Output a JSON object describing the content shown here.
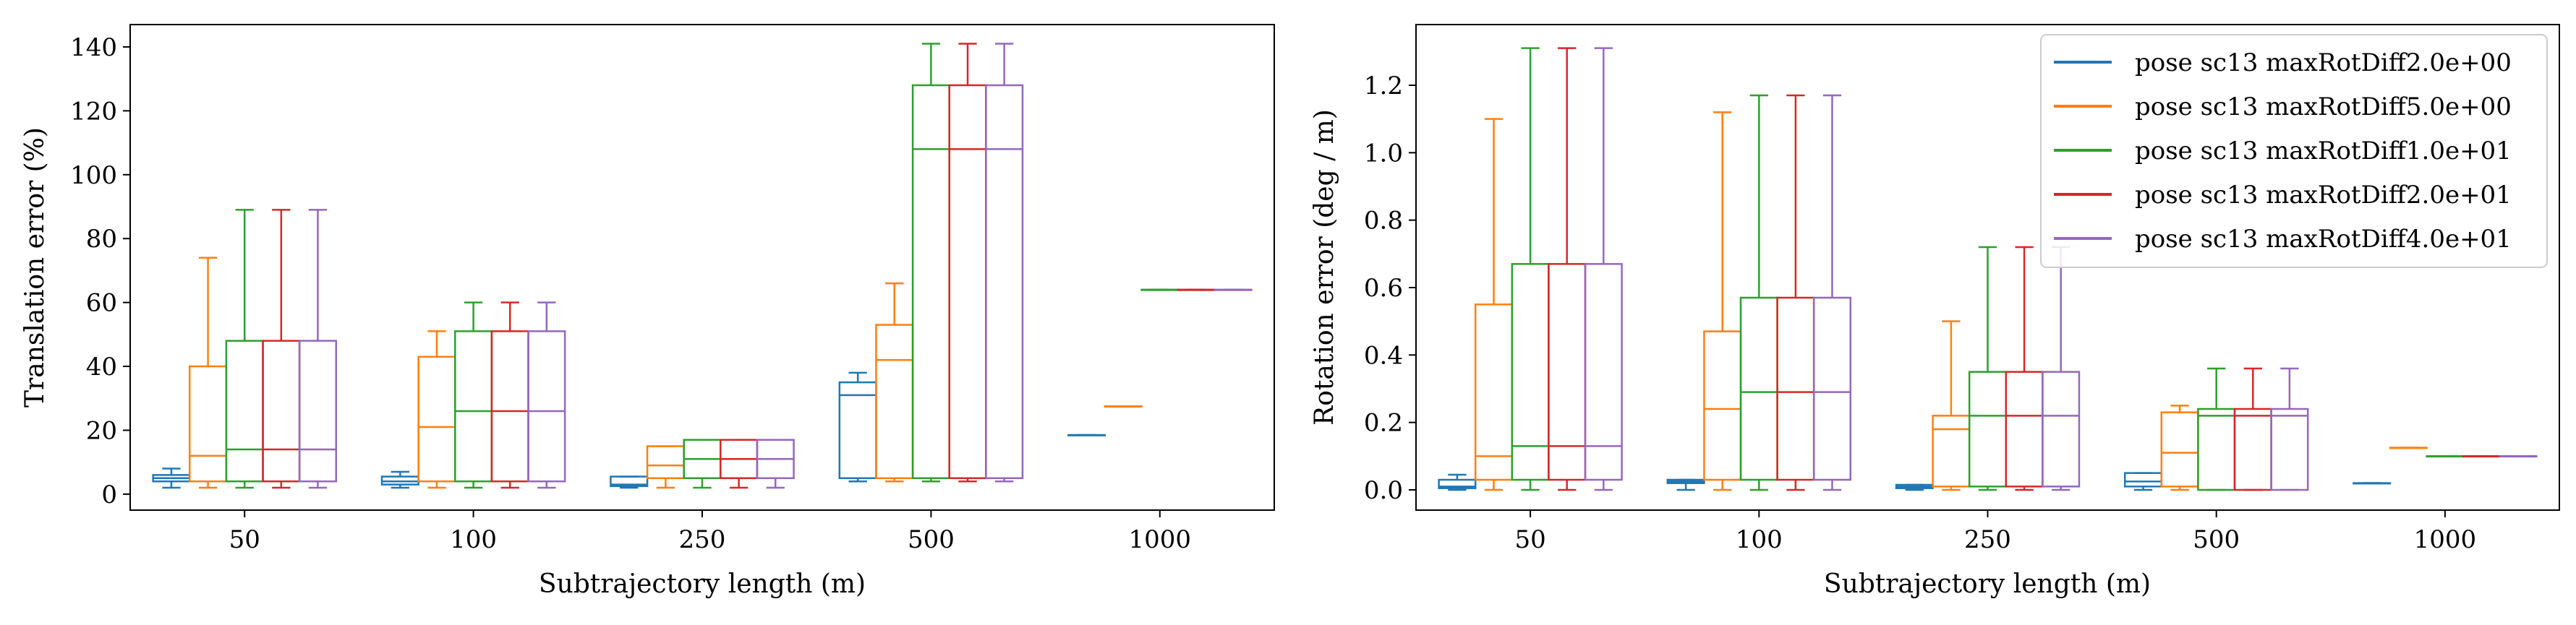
{
  "figure": {
    "background": "#ffffff"
  },
  "chart_data": [
    {
      "type": "box",
      "xlabel": "Subtrajectory length (m)",
      "ylabel": "Translation error (%)",
      "categories": [
        "50",
        "100",
        "250",
        "500",
        "1000"
      ],
      "ylim": [
        -5,
        147
      ],
      "yticks": [
        0,
        20,
        40,
        60,
        80,
        100,
        120,
        140
      ],
      "grid": false,
      "legend": null,
      "series": [
        {
          "name": "pose sc13 maxRotDiff2.0e+00",
          "color": "#1f77b4",
          "boxes": [
            {
              "whislo": 2,
              "q1": 4,
              "med": 5,
              "q3": 6,
              "whishi": 8
            },
            {
              "whislo": 2,
              "q1": 3,
              "med": 4,
              "q3": 5.5,
              "whishi": 7
            },
            {
              "whislo": 2,
              "q1": 2.5,
              "med": 3,
              "q3": 5.5,
              "whishi": 5.5
            },
            {
              "whislo": 4,
              "q1": 5,
              "med": 31,
              "q3": 35,
              "whishi": 38
            },
            {
              "whislo": 18.5,
              "q1": 18.5,
              "med": 18.5,
              "q3": 18.5,
              "whishi": 18.5
            }
          ]
        },
        {
          "name": "pose sc13 maxRotDiff5.0e+00",
          "color": "#ff7f0e",
          "boxes": [
            {
              "whislo": 2,
              "q1": 4,
              "med": 12,
              "q3": 40,
              "whishi": 74
            },
            {
              "whislo": 2,
              "q1": 4,
              "med": 21,
              "q3": 43,
              "whishi": 51
            },
            {
              "whislo": 2,
              "q1": 5,
              "med": 9,
              "q3": 15,
              "whishi": 15
            },
            {
              "whislo": 4,
              "q1": 5,
              "med": 42,
              "q3": 53,
              "whishi": 66
            },
            {
              "whislo": 27.5,
              "q1": 27.5,
              "med": 27.5,
              "q3": 27.5,
              "whishi": 27.5
            }
          ]
        },
        {
          "name": "pose sc13 maxRotDiff1.0e+01",
          "color": "#2ca02c",
          "boxes": [
            {
              "whislo": 2,
              "q1": 4,
              "med": 14,
              "q3": 48,
              "whishi": 89
            },
            {
              "whislo": 2,
              "q1": 4,
              "med": 26,
              "q3": 51,
              "whishi": 60
            },
            {
              "whislo": 2,
              "q1": 5,
              "med": 11,
              "q3": 17,
              "whishi": 17
            },
            {
              "whislo": 4,
              "q1": 5,
              "med": 108,
              "q3": 128,
              "whishi": 141
            },
            {
              "whislo": 64,
              "q1": 64,
              "med": 64,
              "q3": 64,
              "whishi": 64
            }
          ]
        },
        {
          "name": "pose sc13 maxRotDiff2.0e+01",
          "color": "#d62728",
          "boxes": [
            {
              "whislo": 2,
              "q1": 4,
              "med": 14,
              "q3": 48,
              "whishi": 89
            },
            {
              "whislo": 2,
              "q1": 4,
              "med": 26,
              "q3": 51,
              "whishi": 60
            },
            {
              "whislo": 2,
              "q1": 5,
              "med": 11,
              "q3": 17,
              "whishi": 17
            },
            {
              "whislo": 4,
              "q1": 5,
              "med": 108,
              "q3": 128,
              "whishi": 141
            },
            {
              "whislo": 64,
              "q1": 64,
              "med": 64,
              "q3": 64,
              "whishi": 64
            }
          ]
        },
        {
          "name": "pose sc13 maxRotDiff4.0e+01",
          "color": "#9467bd",
          "boxes": [
            {
              "whislo": 2,
              "q1": 4,
              "med": 14,
              "q3": 48,
              "whishi": 89
            },
            {
              "whislo": 2,
              "q1": 4,
              "med": 26,
              "q3": 51,
              "whishi": 60
            },
            {
              "whislo": 2,
              "q1": 5,
              "med": 11,
              "q3": 17,
              "whishi": 17
            },
            {
              "whislo": 4,
              "q1": 5,
              "med": 108,
              "q3": 128,
              "whishi": 141
            },
            {
              "whislo": 64,
              "q1": 64,
              "med": 64,
              "q3": 64,
              "whishi": 64
            }
          ]
        }
      ]
    },
    {
      "type": "box",
      "xlabel": "Subtrajectory length (m)",
      "ylabel": "Rotation error (deg / m)",
      "categories": [
        "50",
        "100",
        "250",
        "500",
        "1000"
      ],
      "ylim": [
        -0.06,
        1.38
      ],
      "yticks": [
        0.0,
        0.2,
        0.4,
        0.6,
        0.8,
        1.0,
        1.2
      ],
      "ytick_labels": [
        "0.0",
        "0.2",
        "0.4",
        "0.6",
        "0.8",
        "1.0",
        "1.2"
      ],
      "grid": false,
      "legend": "top-right",
      "series": [
        {
          "name": "pose sc13 maxRotDiff2.0e+00",
          "color": "#1f77b4",
          "boxes": [
            {
              "whislo": 0.0,
              "q1": 0.005,
              "med": 0.01,
              "q3": 0.03,
              "whishi": 0.045
            },
            {
              "whislo": 0.0,
              "q1": 0.02,
              "med": 0.025,
              "q3": 0.03,
              "whishi": 0.03
            },
            {
              "whislo": 0.0,
              "q1": 0.005,
              "med": 0.01,
              "q3": 0.015,
              "whishi": 0.015
            },
            {
              "whislo": 0.0,
              "q1": 0.01,
              "med": 0.025,
              "q3": 0.05,
              "whishi": 0.05
            },
            {
              "whislo": 0.02,
              "q1": 0.02,
              "med": 0.02,
              "q3": 0.02,
              "whishi": 0.02
            }
          ]
        },
        {
          "name": "pose sc13 maxRotDiff5.0e+00",
          "color": "#ff7f0e",
          "boxes": [
            {
              "whislo": 0.0,
              "q1": 0.03,
              "med": 0.1,
              "q3": 0.55,
              "whishi": 1.1
            },
            {
              "whislo": 0.0,
              "q1": 0.03,
              "med": 0.24,
              "q3": 0.47,
              "whishi": 1.12
            },
            {
              "whislo": 0.0,
              "q1": 0.01,
              "med": 0.18,
              "q3": 0.22,
              "whishi": 0.5
            },
            {
              "whislo": 0.0,
              "q1": 0.01,
              "med": 0.11,
              "q3": 0.23,
              "whishi": 0.25
            },
            {
              "whislo": 0.125,
              "q1": 0.125,
              "med": 0.125,
              "q3": 0.125,
              "whishi": 0.125
            }
          ]
        },
        {
          "name": "pose sc13 maxRotDiff1.0e+01",
          "color": "#2ca02c",
          "boxes": [
            {
              "whislo": 0.0,
              "q1": 0.03,
              "med": 0.13,
              "q3": 0.67,
              "whishi": 1.31
            },
            {
              "whislo": 0.0,
              "q1": 0.03,
              "med": 0.29,
              "q3": 0.57,
              "whishi": 1.17
            },
            {
              "whislo": 0.0,
              "q1": 0.01,
              "med": 0.22,
              "q3": 0.35,
              "whishi": 0.72
            },
            {
              "whislo": 0.0,
              "q1": 0.0,
              "med": 0.22,
              "q3": 0.24,
              "whishi": 0.36
            },
            {
              "whislo": 0.1,
              "q1": 0.1,
              "med": 0.1,
              "q3": 0.1,
              "whishi": 0.1
            }
          ]
        },
        {
          "name": "pose sc13 maxRotDiff2.0e+01",
          "color": "#d62728",
          "boxes": [
            {
              "whislo": 0.0,
              "q1": 0.03,
              "med": 0.13,
              "q3": 0.67,
              "whishi": 1.31
            },
            {
              "whislo": 0.0,
              "q1": 0.03,
              "med": 0.29,
              "q3": 0.57,
              "whishi": 1.17
            },
            {
              "whislo": 0.0,
              "q1": 0.01,
              "med": 0.22,
              "q3": 0.35,
              "whishi": 0.72
            },
            {
              "whislo": 0.0,
              "q1": 0.0,
              "med": 0.22,
              "q3": 0.24,
              "whishi": 0.36
            },
            {
              "whislo": 0.1,
              "q1": 0.1,
              "med": 0.1,
              "q3": 0.1,
              "whishi": 0.1
            }
          ]
        },
        {
          "name": "pose sc13 maxRotDiff4.0e+01",
          "color": "#9467bd",
          "boxes": [
            {
              "whislo": 0.0,
              "q1": 0.03,
              "med": 0.13,
              "q3": 0.67,
              "whishi": 1.31
            },
            {
              "whislo": 0.0,
              "q1": 0.03,
              "med": 0.29,
              "q3": 0.57,
              "whishi": 1.17
            },
            {
              "whislo": 0.0,
              "q1": 0.01,
              "med": 0.22,
              "q3": 0.35,
              "whishi": 0.72
            },
            {
              "whislo": 0.0,
              "q1": 0.0,
              "med": 0.22,
              "q3": 0.24,
              "whishi": 0.36
            },
            {
              "whislo": 0.1,
              "q1": 0.1,
              "med": 0.1,
              "q3": 0.1,
              "whishi": 0.1
            }
          ]
        }
      ]
    }
  ]
}
